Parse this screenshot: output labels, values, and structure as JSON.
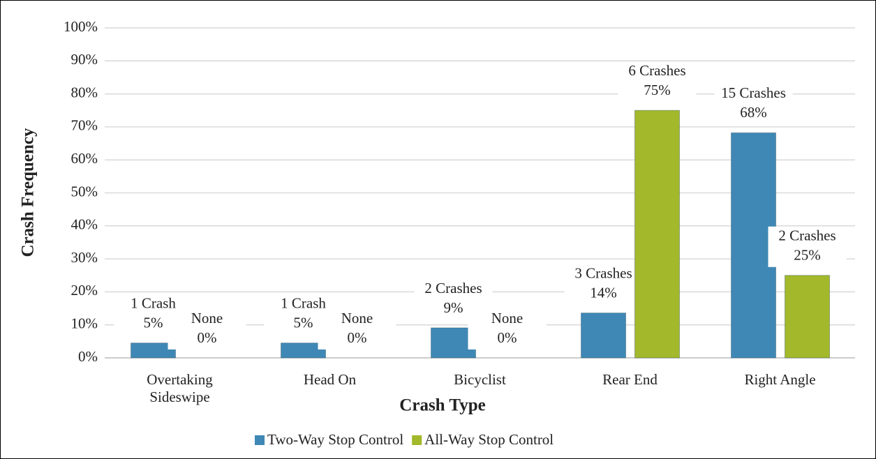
{
  "chart_data": {
    "type": "bar",
    "x_label": "Crash Type",
    "y_label": "Crash Frequency",
    "categories": [
      "Overtaking Sideswipe",
      "Head On",
      "Bicyclist",
      "Rear End",
      "Right Angle"
    ],
    "series": [
      {
        "name": "Two-Way Stop Control",
        "color": "#3f88b5",
        "values": [
          4.5,
          4.5,
          9.1,
          13.6,
          68.2
        ],
        "value_labels": [
          "5%",
          "5%",
          "9%",
          "14%",
          "68%"
        ],
        "crash_labels": [
          "1 Crash",
          "1 Crash",
          "2 Crashes",
          "3 Crashes",
          "15 Crashes"
        ]
      },
      {
        "name": "All-Way Stop Control",
        "color": "#a3b82a",
        "values": [
          0,
          0,
          0,
          75,
          25
        ],
        "value_labels": [
          "0%",
          "0%",
          "0%",
          "75%",
          "25%"
        ],
        "crash_labels": [
          "None",
          "None",
          "None",
          "6 Crashes",
          "2 Crashes"
        ]
      }
    ],
    "ylim": [
      0,
      100
    ],
    "yticks": [
      {
        "value": 0,
        "label": "0%"
      },
      {
        "value": 10,
        "label": "10%"
      },
      {
        "value": 20,
        "label": "20%"
      },
      {
        "value": 30,
        "label": "30%"
      },
      {
        "value": 40,
        "label": "40%"
      },
      {
        "value": 50,
        "label": "50%"
      },
      {
        "value": 60,
        "label": "60%"
      },
      {
        "value": 70,
        "label": "70%"
      },
      {
        "value": 80,
        "label": "80%"
      },
      {
        "value": 90,
        "label": "90%"
      },
      {
        "value": 100,
        "label": "100%"
      }
    ],
    "grid": true,
    "legend": "bottom"
  }
}
